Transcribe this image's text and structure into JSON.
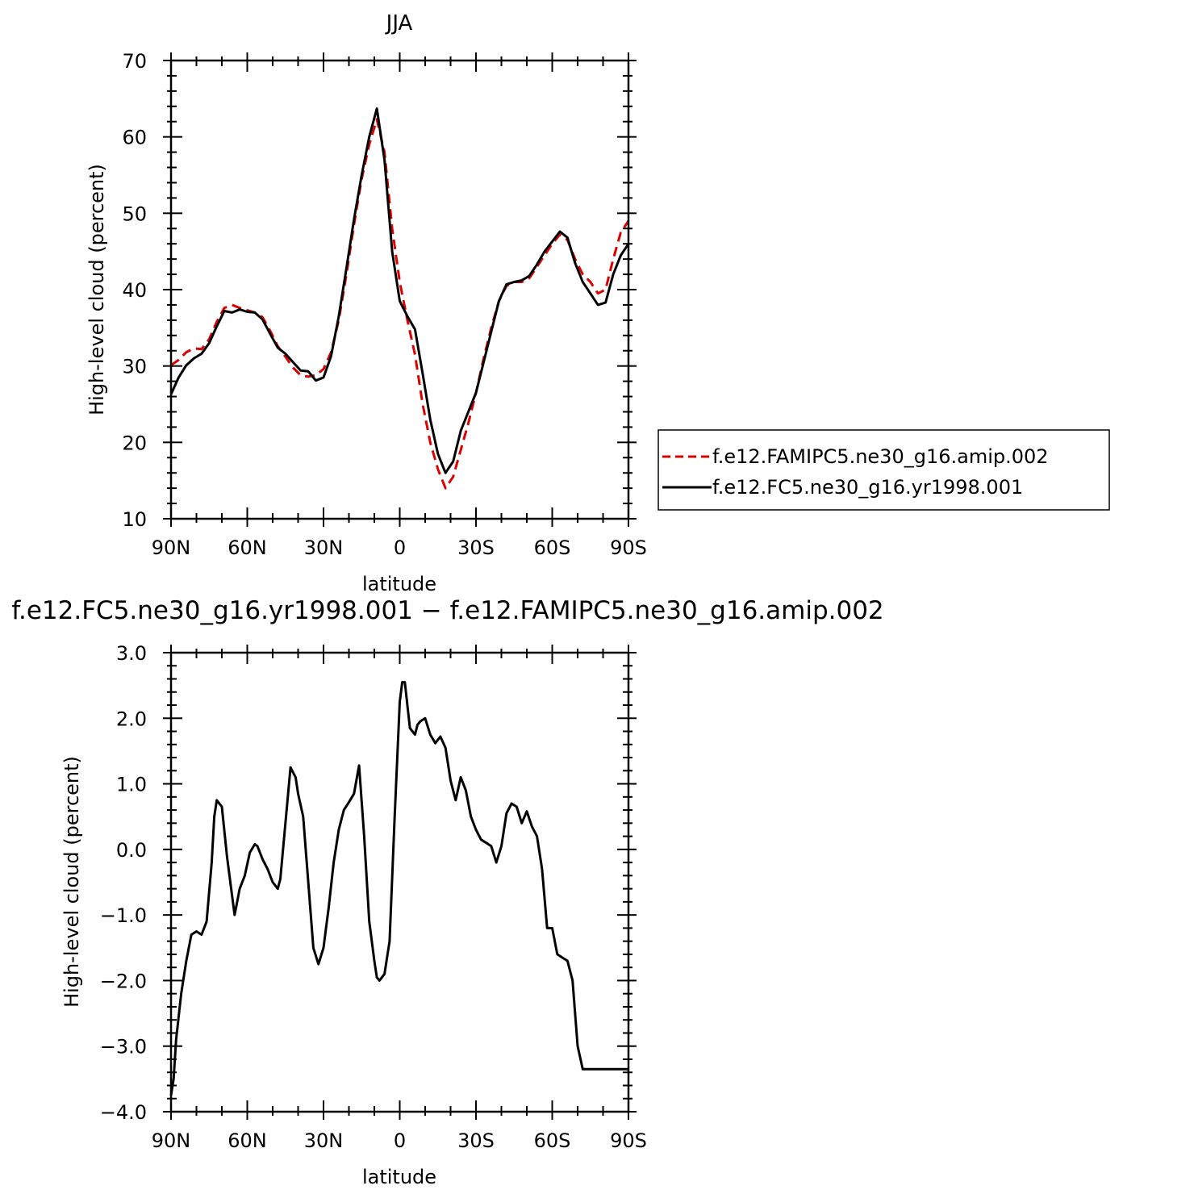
{
  "chart_data": [
    {
      "type": "line",
      "title": "JJA",
      "xlabel": "latitude",
      "ylabel": "High-level cloud (percent)",
      "xlim": [
        90,
        -90
      ],
      "ylim": [
        10,
        70
      ],
      "x_ticks": [
        {
          "value": 90,
          "label": "90N"
        },
        {
          "value": 60,
          "label": "60N"
        },
        {
          "value": 30,
          "label": "30N"
        },
        {
          "value": 0,
          "label": "0"
        },
        {
          "value": -30,
          "label": "30S"
        },
        {
          "value": -60,
          "label": "60S"
        },
        {
          "value": -90,
          "label": "90S"
        }
      ],
      "y_ticks": [
        {
          "value": 10,
          "label": "10"
        },
        {
          "value": 20,
          "label": "20"
        },
        {
          "value": 30,
          "label": "30"
        },
        {
          "value": 40,
          "label": "40"
        },
        {
          "value": 50,
          "label": "50"
        },
        {
          "value": 60,
          "label": "60"
        },
        {
          "value": 70,
          "label": "70"
        }
      ],
      "legend_position": "right",
      "series": [
        {
          "name": "f.e12.FAMIPC5.ne30_g16.amip.002",
          "color": "#dd0000",
          "dash": "dashed",
          "x": [
            90,
            87,
            84,
            81,
            78,
            75,
            72,
            69,
            66,
            63,
            60,
            57,
            54,
            51,
            48,
            45,
            42,
            39,
            36,
            33,
            30,
            27,
            24,
            21,
            18,
            15,
            12,
            9,
            6,
            3,
            0,
            -3,
            -6,
            -9,
            -12,
            -15,
            -18,
            -21,
            -24,
            -27,
            -30,
            -33,
            -36,
            -39,
            -42,
            -45,
            -48,
            -51,
            -54,
            -57,
            -60,
            -63,
            -66,
            -69,
            -72,
            -75,
            -78,
            -81,
            -84,
            -87,
            -90
          ],
          "values": [
            30.1,
            30.8,
            31.8,
            32.3,
            32.2,
            33.5,
            35.8,
            37.6,
            38.0,
            37.6,
            37.3,
            37.0,
            36.4,
            34.6,
            32.6,
            31.2,
            29.8,
            28.8,
            28.6,
            28.8,
            29.6,
            31.8,
            36.0,
            42.0,
            48.5,
            54.5,
            59.0,
            62.3,
            58.0,
            48.0,
            41.0,
            36.0,
            31.5,
            25.0,
            20.0,
            16.5,
            14.0,
            15.5,
            19.0,
            22.5,
            26.5,
            31.0,
            35.0,
            38.5,
            40.5,
            41.0,
            41.0,
            41.5,
            43.0,
            44.5,
            46.0,
            47.2,
            46.5,
            44.0,
            42.0,
            41.0,
            39.5,
            40.0,
            44.0,
            47.5,
            49.0
          ]
        },
        {
          "name": "f.e12.FC5.ne30_g16.yr1998.001",
          "color": "#000000",
          "dash": "solid",
          "x": [
            90,
            87,
            84,
            81,
            78,
            75,
            72,
            69,
            66,
            63,
            60,
            57,
            54,
            51,
            48,
            45,
            42,
            39,
            36,
            33,
            30,
            27,
            24,
            21,
            18,
            15,
            12,
            9,
            6,
            3,
            0,
            -3,
            -6,
            -9,
            -12,
            -15,
            -18,
            -21,
            -24,
            -27,
            -30,
            -33,
            -36,
            -39,
            -42,
            -45,
            -48,
            -51,
            -54,
            -57,
            -60,
            -63,
            -66,
            -69,
            -72,
            -75,
            -78,
            -81,
            -84,
            -87,
            -90
          ],
          "values": [
            26.3,
            28.5,
            30.1,
            31.0,
            31.6,
            33.0,
            35.2,
            37.2,
            37.0,
            37.4,
            37.1,
            37.0,
            36.1,
            34.2,
            32.4,
            31.6,
            30.5,
            29.4,
            29.3,
            28.1,
            28.5,
            31.3,
            36.5,
            42.8,
            49.2,
            55.0,
            60.0,
            63.7,
            57.0,
            45.0,
            38.5,
            36.5,
            34.8,
            29.0,
            23.0,
            18.5,
            16.0,
            17.5,
            21.5,
            24.0,
            26.5,
            30.5,
            34.5,
            38.5,
            40.7,
            41.0,
            41.2,
            41.8,
            43.3,
            45.0,
            46.3,
            47.6,
            46.8,
            43.5,
            41.0,
            39.5,
            38.0,
            38.3,
            42.0,
            44.5,
            46.0
          ]
        }
      ]
    },
    {
      "type": "line",
      "title": "f.e12.FC5.ne30_g16.yr1998.001 − f.e12.FAMIPC5.ne30_g16.amip.002",
      "xlabel": "latitude",
      "ylabel": "High-level cloud (percent)",
      "xlim": [
        90,
        -90
      ],
      "ylim": [
        -4.0,
        3.0
      ],
      "x_ticks": [
        {
          "value": 90,
          "label": "90N"
        },
        {
          "value": 60,
          "label": "60N"
        },
        {
          "value": 30,
          "label": "30N"
        },
        {
          "value": 0,
          "label": "0"
        },
        {
          "value": -30,
          "label": "30S"
        },
        {
          "value": -60,
          "label": "60S"
        },
        {
          "value": -90,
          "label": "90S"
        }
      ],
      "y_ticks": [
        {
          "value": -4.0,
          "label": "−4.0"
        },
        {
          "value": -3.0,
          "label": "−3.0"
        },
        {
          "value": -2.0,
          "label": "−2.0"
        },
        {
          "value": -1.0,
          "label": "−1.0"
        },
        {
          "value": 0.0,
          "label": "0.0"
        },
        {
          "value": 1.0,
          "label": "1.0"
        },
        {
          "value": 2.0,
          "label": "2.0"
        },
        {
          "value": 3.0,
          "label": "3.0"
        }
      ],
      "series": [
        {
          "color": "#000000",
          "dash": "solid",
          "x": [
            90,
            89,
            88,
            86,
            84,
            82,
            80,
            78,
            76,
            74,
            73,
            72,
            70,
            68,
            66,
            65,
            63,
            61,
            59,
            57,
            56,
            54,
            52,
            50,
            48,
            47,
            45,
            43,
            41,
            40,
            38,
            36,
            34,
            32,
            30,
            29,
            28,
            26,
            24,
            22,
            20,
            18,
            16,
            14,
            12,
            10,
            9,
            8,
            6,
            4,
            2,
            0,
            -1,
            -2,
            -4,
            -6,
            -7,
            -8,
            -10,
            -12,
            -14,
            -16,
            -18,
            -20,
            -22,
            -24,
            -26,
            -28,
            -30,
            -32,
            -34,
            -36,
            -38,
            -40,
            -42,
            -44,
            -46,
            -48,
            -50,
            -52,
            -54,
            -56,
            -58,
            -60,
            -62,
            -64,
            -66,
            -68,
            -70,
            -72,
            -74,
            -76,
            -78,
            -80,
            -82,
            -84,
            -86,
            -88,
            -90
          ],
          "values": [
            -3.75,
            -3.5,
            -2.9,
            -2.2,
            -1.7,
            -1.3,
            -1.25,
            -1.3,
            -1.1,
            -0.2,
            0.5,
            0.75,
            0.65,
            -0.1,
            -0.7,
            -1.0,
            -0.6,
            -0.4,
            -0.05,
            0.08,
            0.05,
            -0.15,
            -0.3,
            -0.5,
            -0.6,
            -0.45,
            0.4,
            1.25,
            1.1,
            0.85,
            0.5,
            -0.5,
            -1.5,
            -1.75,
            -1.5,
            -1.2,
            -0.9,
            -0.2,
            0.3,
            0.6,
            0.72,
            0.85,
            1.28,
            0.2,
            -1.1,
            -1.7,
            -1.95,
            -2.0,
            -1.9,
            -1.4,
            0.5,
            2.25,
            2.55,
            2.55,
            1.85,
            1.75,
            1.9,
            1.95,
            2.0,
            1.75,
            1.62,
            1.72,
            1.55,
            1.05,
            0.75,
            1.1,
            0.9,
            0.5,
            0.3,
            0.15,
            0.1,
            0.05,
            -0.2,
            0.05,
            0.55,
            0.7,
            0.65,
            0.4,
            0.58,
            0.35,
            0.2,
            -0.3,
            -1.2,
            -1.2,
            -1.6,
            -1.65,
            -1.7,
            -2.0,
            -3.0,
            -3.35,
            -3.35,
            -3.35,
            -3.35,
            -3.35,
            -3.35,
            -3.35,
            -3.35,
            -3.35,
            -3.35
          ]
        }
      ]
    }
  ]
}
